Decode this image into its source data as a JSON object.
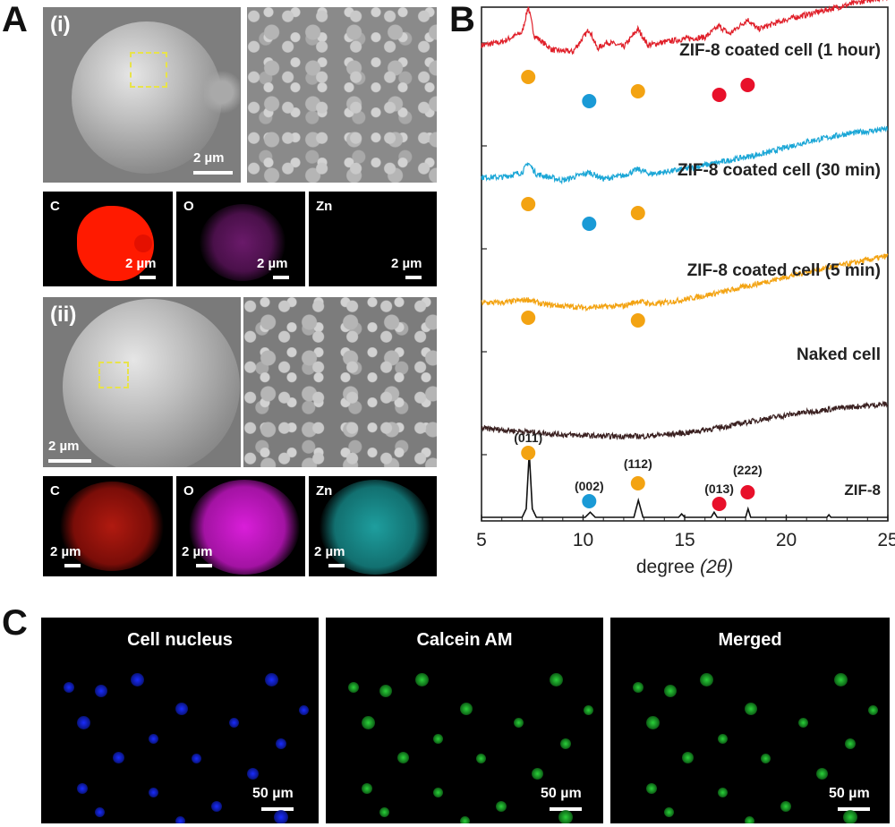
{
  "panels": {
    "a_label": "A",
    "b_label": "B",
    "c_label": "C"
  },
  "panel_a": {
    "row1_label": "(i)",
    "row1_scale": "2 µm",
    "row1_eds": [
      {
        "element": "C",
        "scale": "2 µm",
        "color": "#ff1a00"
      },
      {
        "element": "O",
        "scale": "2 µm",
        "color": "#b021b0"
      },
      {
        "element": "Zn",
        "scale": "2 µm",
        "color": "#1c6f7a"
      }
    ],
    "row2_label": "(ii)",
    "row2_scale": "2 µm",
    "row2_eds": [
      {
        "element": "C",
        "scale": "2 µm",
        "color": "#ff1a00"
      },
      {
        "element": "O",
        "scale": "2 µm",
        "color": "#e020e0"
      },
      {
        "element": "Zn",
        "scale": "2 µm",
        "color": "#22c7c7"
      }
    ]
  },
  "panel_c": {
    "images": [
      {
        "title": "Cell nucleus",
        "scale": "50 µm",
        "color": "#1a2cff"
      },
      {
        "title": "Calcein AM",
        "scale": "50 µm",
        "color": "#2bd13a"
      },
      {
        "title": "Merged",
        "scale": "50 µm",
        "color": "#2bd13a"
      }
    ]
  },
  "chart_data": {
    "type": "line",
    "xlabel_main": "degree",
    "xlabel_var": "(2θ)",
    "xlim": [
      5,
      25
    ],
    "xticks": [
      5,
      10,
      15,
      20,
      25
    ],
    "series": [
      {
        "name": "ZIF-8 coated cell (1 hour)",
        "color": "#e0202a",
        "x": [
          5,
          6,
          7,
          7.3,
          7.6,
          8.5,
          9.5,
          10.3,
          10.7,
          11.2,
          12.0,
          12.7,
          13.2,
          14,
          15,
          16,
          16.7,
          17.2,
          18.1,
          18.6,
          20,
          22,
          24,
          25
        ],
        "y": [
          0.58,
          0.6,
          0.66,
          0.82,
          0.64,
          0.55,
          0.54,
          0.68,
          0.56,
          0.6,
          0.57,
          0.68,
          0.58,
          0.6,
          0.62,
          0.63,
          0.7,
          0.65,
          0.74,
          0.68,
          0.74,
          0.8,
          0.86,
          0.88
        ]
      },
      {
        "name": "ZIF-8 coated cell (30 min)",
        "color": "#1aa6d6",
        "x": [
          5,
          6,
          7,
          7.3,
          7.7,
          9,
          10.3,
          11,
          12,
          12.7,
          13.3,
          15,
          17,
          19,
          21,
          23,
          25
        ],
        "y": [
          0.4,
          0.4,
          0.43,
          0.49,
          0.42,
          0.38,
          0.43,
          0.39,
          0.41,
          0.45,
          0.42,
          0.45,
          0.5,
          0.55,
          0.62,
          0.67,
          0.7
        ]
      },
      {
        "name": "ZIF-8 coated cell (5 min)",
        "color": "#f3a312",
        "x": [
          5,
          6,
          7.3,
          8,
          10,
          12,
          12.7,
          13.5,
          15,
          17,
          19,
          21,
          23,
          25
        ],
        "y": [
          0.26,
          0.26,
          0.28,
          0.25,
          0.23,
          0.24,
          0.27,
          0.25,
          0.28,
          0.33,
          0.39,
          0.45,
          0.5,
          0.55
        ]
      },
      {
        "name": "Naked cell",
        "color": "#3a2020",
        "x": [
          5,
          7,
          9,
          11,
          13,
          15,
          17,
          19,
          21,
          23,
          25
        ],
        "y": [
          0.12,
          0.1,
          0.08,
          0.07,
          0.07,
          0.09,
          0.13,
          0.18,
          0.22,
          0.25,
          0.27
        ]
      },
      {
        "name": "ZIF-8",
        "color": "#111111",
        "x": [
          5,
          7.0,
          7.2,
          7.35,
          7.5,
          7.7,
          10.1,
          10.35,
          10.6,
          12.5,
          12.72,
          12.95,
          14.7,
          14.85,
          15.0,
          16.3,
          16.45,
          16.6,
          18.0,
          18.12,
          18.25,
          22.0,
          22.1,
          22.2,
          25
        ],
        "y": [
          0.0,
          0.0,
          0.05,
          0.38,
          0.05,
          0.0,
          0.0,
          0.03,
          0.0,
          0.0,
          0.1,
          0.0,
          0.0,
          0.02,
          0.0,
          0.0,
          0.03,
          0.0,
          0.0,
          0.05,
          0.0,
          0.0,
          0.015,
          0.0,
          0.0
        ]
      }
    ],
    "peak_labels": [
      {
        "text": "(011)",
        "x": 7.3
      },
      {
        "text": "(002)",
        "x": 10.3
      },
      {
        "text": "(112)",
        "x": 12.7
      },
      {
        "text": "(013)",
        "x": 16.7
      },
      {
        "text": "(222)",
        "x": 18.1
      }
    ],
    "series_labels": [
      "ZIF-8 coated cell (1 hour)",
      "ZIF-8 coated cell (30 min)",
      "ZIF-8 coated cell (5 min)",
      "Naked cell",
      "ZIF-8"
    ],
    "markers": [
      {
        "series": 0,
        "points": [
          {
            "x": 7.3,
            "c": "#f3a312"
          },
          {
            "x": 10.3,
            "c": "#1a9ad6"
          },
          {
            "x": 12.7,
            "c": "#f3a312"
          },
          {
            "x": 16.7,
            "c": "#e8102a"
          },
          {
            "x": 18.1,
            "c": "#e8102a"
          }
        ]
      },
      {
        "series": 1,
        "points": [
          {
            "x": 7.3,
            "c": "#f3a312"
          },
          {
            "x": 10.3,
            "c": "#1a9ad6"
          },
          {
            "x": 12.7,
            "c": "#f3a312"
          }
        ]
      },
      {
        "series": 2,
        "points": [
          {
            "x": 7.3,
            "c": "#f3a312"
          },
          {
            "x": 12.7,
            "c": "#f3a312"
          }
        ]
      },
      {
        "series": 4,
        "points": [
          {
            "x": 7.3,
            "c": "#f3a312"
          },
          {
            "x": 10.3,
            "c": "#1a9ad6"
          },
          {
            "x": 12.7,
            "c": "#f3a312"
          },
          {
            "x": 16.7,
            "c": "#e8102a"
          },
          {
            "x": 18.1,
            "c": "#e8102a"
          }
        ]
      }
    ]
  }
}
